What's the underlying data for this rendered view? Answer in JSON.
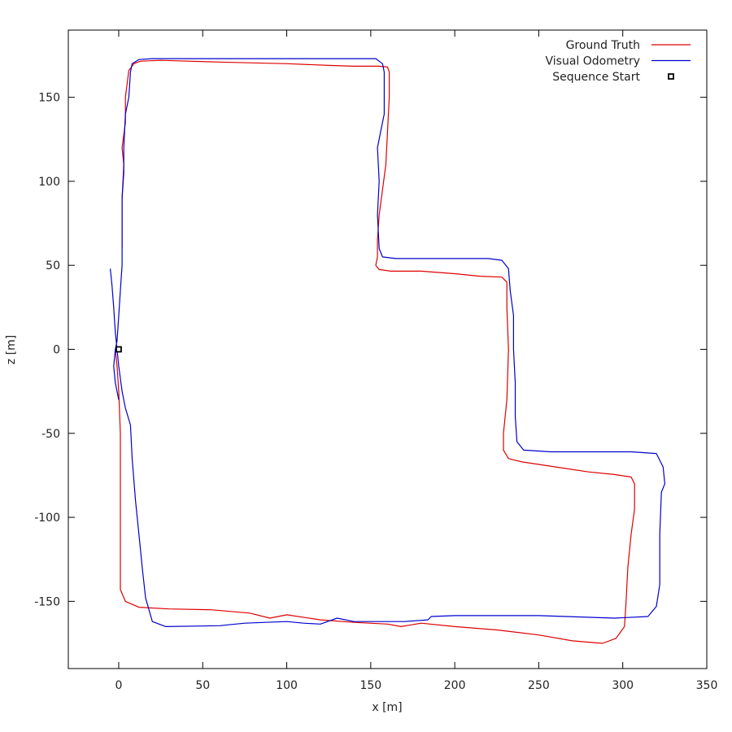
{
  "chart_data": {
    "type": "line",
    "title": "",
    "xlabel": "x [m]",
    "ylabel": "z [m]",
    "xlim": [
      -30,
      350
    ],
    "ylim": [
      -190,
      190
    ],
    "xticks": [
      0,
      50,
      100,
      150,
      200,
      250,
      300,
      350
    ],
    "yticks": [
      150,
      100,
      50,
      0,
      -50,
      -100,
      -150
    ],
    "grid": false,
    "legend_position": "top-right",
    "series": [
      {
        "name": "Ground Truth",
        "color": "#dd0000",
        "points": [
          [
            2,
            60
          ],
          [
            2,
            90
          ],
          [
            3,
            110
          ],
          [
            2,
            120
          ],
          [
            4,
            135
          ],
          [
            4,
            150
          ],
          [
            5,
            158
          ],
          [
            6,
            166
          ],
          [
            9,
            170
          ],
          [
            13,
            171.5
          ],
          [
            25,
            172
          ],
          [
            60,
            171
          ],
          [
            100,
            170
          ],
          [
            125,
            169
          ],
          [
            140,
            168.5
          ],
          [
            155,
            168.5
          ],
          [
            160,
            168
          ],
          [
            161,
            165
          ],
          [
            161,
            150
          ],
          [
            160,
            130
          ],
          [
            159,
            110
          ],
          [
            157,
            95
          ],
          [
            155,
            80
          ],
          [
            154,
            65
          ],
          [
            154,
            55
          ],
          [
            153,
            50
          ],
          [
            155,
            47.5
          ],
          [
            162,
            46.5
          ],
          [
            180,
            46.5
          ],
          [
            200,
            45
          ],
          [
            215,
            43.5
          ],
          [
            228,
            43
          ],
          [
            231,
            40
          ],
          [
            231,
            25
          ],
          [
            232,
            0
          ],
          [
            231,
            -30
          ],
          [
            229,
            -50
          ],
          [
            229,
            -60
          ],
          [
            232,
            -65
          ],
          [
            240,
            -67
          ],
          [
            260,
            -70
          ],
          [
            280,
            -73
          ],
          [
            295,
            -74.5
          ],
          [
            305,
            -76
          ],
          [
            307,
            -80
          ],
          [
            307,
            -95
          ],
          [
            305,
            -110
          ],
          [
            303,
            -130
          ],
          [
            302,
            -150
          ],
          [
            301,
            -165
          ],
          [
            296,
            -172
          ],
          [
            288,
            -175
          ],
          [
            270,
            -173.5
          ],
          [
            250,
            -170
          ],
          [
            225,
            -167
          ],
          [
            200,
            -165
          ],
          [
            180,
            -163
          ],
          [
            168,
            -165
          ],
          [
            160,
            -163.5
          ],
          [
            140,
            -162.5
          ],
          [
            120,
            -161
          ],
          [
            100,
            -158
          ],
          [
            90,
            -160
          ],
          [
            78,
            -157
          ],
          [
            55,
            -155
          ],
          [
            30,
            -154.5
          ],
          [
            12,
            -153.5
          ],
          [
            4,
            -150
          ],
          [
            1,
            -143
          ],
          [
            1,
            -130
          ],
          [
            1,
            -100
          ],
          [
            1,
            -70
          ],
          [
            1,
            -50
          ],
          [
            0,
            -25
          ],
          [
            -1,
            -10
          ],
          [
            -2,
            0
          ]
        ]
      },
      {
        "name": "Visual Odometry",
        "color": "#0000cc",
        "points": [
          [
            -5,
            48
          ],
          [
            -4,
            38
          ],
          [
            -3,
            25
          ],
          [
            -2,
            10
          ],
          [
            -1,
            0
          ],
          [
            0,
            -10
          ],
          [
            2,
            -25
          ],
          [
            4,
            -35
          ],
          [
            7,
            -45
          ],
          [
            8,
            -65
          ],
          [
            10,
            -90
          ],
          [
            12,
            -110
          ],
          [
            14,
            -130
          ],
          [
            16,
            -148
          ],
          [
            20,
            -162
          ],
          [
            28,
            -165
          ],
          [
            60,
            -164.5
          ],
          [
            75,
            -163
          ],
          [
            100,
            -162
          ],
          [
            110,
            -163
          ],
          [
            120,
            -163.5
          ],
          [
            130,
            -160
          ],
          [
            140,
            -162
          ],
          [
            155,
            -162
          ],
          [
            170,
            -162
          ],
          [
            184,
            -161
          ],
          [
            186,
            -159
          ],
          [
            200,
            -158.5
          ],
          [
            250,
            -158.5
          ],
          [
            295,
            -160
          ],
          [
            315,
            -159
          ],
          [
            320,
            -153
          ],
          [
            322,
            -140
          ],
          [
            322,
            -110
          ],
          [
            323,
            -85
          ],
          [
            325,
            -80
          ],
          [
            324,
            -70
          ],
          [
            320,
            -62
          ],
          [
            305,
            -61
          ],
          [
            280,
            -61
          ],
          [
            257,
            -61
          ],
          [
            241,
            -60
          ],
          [
            237,
            -55
          ],
          [
            236,
            -40
          ],
          [
            236,
            -20
          ],
          [
            235,
            0
          ],
          [
            235,
            20
          ],
          [
            233,
            35
          ],
          [
            232,
            48
          ],
          [
            228,
            53
          ],
          [
            220,
            54
          ],
          [
            200,
            54
          ],
          [
            180,
            54
          ],
          [
            165,
            54
          ],
          [
            157,
            55
          ],
          [
            155,
            60
          ],
          [
            154,
            80
          ],
          [
            155,
            100
          ],
          [
            154,
            120
          ],
          [
            156,
            130
          ],
          [
            158,
            140
          ],
          [
            158,
            155
          ],
          [
            158,
            165
          ],
          [
            157,
            170
          ],
          [
            153,
            173
          ],
          [
            125,
            173
          ],
          [
            100,
            173
          ],
          [
            75,
            173
          ],
          [
            50,
            173
          ],
          [
            20,
            173
          ],
          [
            12,
            172.5
          ],
          [
            8,
            170
          ],
          [
            7,
            165
          ],
          [
            6,
            150
          ],
          [
            4,
            140
          ],
          [
            3,
            120
          ],
          [
            3,
            105
          ],
          [
            2,
            90
          ],
          [
            2,
            70
          ],
          [
            2,
            50
          ],
          [
            1,
            35
          ],
          [
            0,
            20
          ],
          [
            -1,
            5
          ],
          [
            -2,
            0
          ],
          [
            -3,
            -10
          ],
          [
            -2,
            -20
          ],
          [
            0,
            -30
          ]
        ]
      }
    ],
    "markers": [
      {
        "name": "Sequence Start",
        "x": 0,
        "y": 0,
        "shape": "square"
      }
    ]
  }
}
